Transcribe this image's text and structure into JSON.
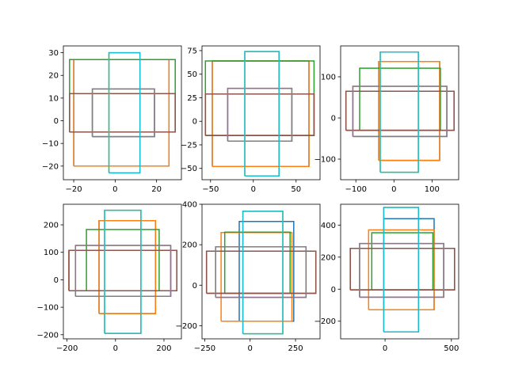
{
  "colors": [
    "#1f77b4",
    "#ff7f0e",
    "#2ca02c",
    "#d62728",
    "#9467bd",
    "#8c564b",
    "#e377c2",
    "#7f7f7f",
    "#bcbd22",
    "#17becf"
  ],
  "chart_data": [
    {
      "type": "line",
      "panel": "row1-col1",
      "xlim": [
        -25,
        32
      ],
      "ylim": [
        -26,
        33
      ],
      "xticks": [
        -20,
        0,
        20
      ],
      "xtick_labels": [
        "−20",
        "0",
        "20"
      ],
      "yticks": [
        -20,
        -10,
        0,
        10,
        20,
        30
      ],
      "ytick_labels": [
        "−20",
        "−10",
        "0",
        "10",
        "20",
        "30"
      ],
      "grid": false,
      "rectangles": [
        {
          "x0": -20,
          "x1": 26,
          "y0": -20,
          "y1": 27
        },
        {
          "x0": -20,
          "x1": 26,
          "y0": -20,
          "y1": 27
        },
        {
          "x0": -22,
          "x1": 29,
          "y0": -5,
          "y1": 27
        },
        {
          "x0": -22,
          "x1": 29,
          "y0": -5,
          "y1": 12
        },
        {
          "x0": -11,
          "x1": 19,
          "y0": -7,
          "y1": 12
        },
        {
          "x0": -22,
          "x1": 29,
          "y0": -5,
          "y1": 12
        },
        {
          "x0": -11,
          "x1": 19,
          "y0": -7,
          "y1": 14
        },
        {
          "x0": -11,
          "x1": 19,
          "y0": -7,
          "y1": 14
        },
        {
          "x0": -3,
          "x1": 12,
          "y0": -23,
          "y1": 30
        },
        {
          "x0": -3,
          "x1": 12,
          "y0": -23,
          "y1": 30
        }
      ]
    },
    {
      "type": "line",
      "panel": "row1-col2",
      "xlim": [
        -60,
        78
      ],
      "ylim": [
        -62,
        80
      ],
      "xticks": [
        -50,
        0,
        50
      ],
      "xtick_labels": [
        "−50",
        "0",
        "50"
      ],
      "yticks": [
        -50,
        -25,
        0,
        25,
        50,
        75
      ],
      "ytick_labels": [
        "−50",
        "−25",
        "0",
        "25",
        "50",
        "75"
      ],
      "grid": false,
      "rectangles": [
        {
          "x0": -48,
          "x1": 65,
          "y0": -48,
          "y1": 64
        },
        {
          "x0": -48,
          "x1": 65,
          "y0": -48,
          "y1": 64
        },
        {
          "x0": -56,
          "x1": 71,
          "y0": -15,
          "y1": 64
        },
        {
          "x0": -56,
          "x1": 71,
          "y0": -15,
          "y1": 29
        },
        {
          "x0": -30,
          "x1": 45,
          "y0": -21,
          "y1": 29
        },
        {
          "x0": -56,
          "x1": 71,
          "y0": -15,
          "y1": 29
        },
        {
          "x0": -30,
          "x1": 45,
          "y0": -21,
          "y1": 35
        },
        {
          "x0": -30,
          "x1": 45,
          "y0": -21,
          "y1": 35
        },
        {
          "x0": -10,
          "x1": 30,
          "y0": -58,
          "y1": 74
        },
        {
          "x0": -10,
          "x1": 30,
          "y0": -58,
          "y1": 74
        }
      ]
    },
    {
      "type": "line",
      "panel": "row1-col3",
      "xlim": [
        -140,
        170
      ],
      "ylim": [
        -150,
        175
      ],
      "xticks": [
        -100,
        0,
        100
      ],
      "xtick_labels": [
        "−100",
        "0",
        "100"
      ],
      "yticks": [
        -100,
        0,
        100
      ],
      "ytick_labels": [
        "−100",
        "0",
        "100"
      ],
      "grid": false,
      "rectangles": [
        {
          "x0": -40,
          "x1": 120,
          "y0": -103,
          "y1": 137
        },
        {
          "x0": -40,
          "x1": 120,
          "y0": -103,
          "y1": 137
        },
        {
          "x0": -90,
          "x1": 122,
          "y0": -30,
          "y1": 121
        },
        {
          "x0": -126,
          "x1": 158,
          "y0": -30,
          "y1": 65
        },
        {
          "x0": -108,
          "x1": 139,
          "y0": -45,
          "y1": 65
        },
        {
          "x0": -126,
          "x1": 158,
          "y0": -30,
          "y1": 65
        },
        {
          "x0": -108,
          "x1": 139,
          "y0": -45,
          "y1": 77
        },
        {
          "x0": -108,
          "x1": 139,
          "y0": -45,
          "y1": 77
        },
        {
          "x0": -36,
          "x1": 64,
          "y0": -132,
          "y1": 160
        },
        {
          "x0": -36,
          "x1": 64,
          "y0": -132,
          "y1": 160
        }
      ]
    },
    {
      "type": "line",
      "panel": "row2-col1",
      "xlim": [
        -215,
        272
      ],
      "ylim": [
        -215,
        275
      ],
      "xticks": [
        -200,
        0,
        200
      ],
      "xtick_labels": [
        "−200",
        "0",
        "200"
      ],
      "yticks": [
        -200,
        -100,
        0,
        100,
        200
      ],
      "ytick_labels": [
        "−200",
        "−100",
        "0",
        "100",
        "200"
      ],
      "grid": false,
      "rectangles": [
        {
          "x0": -68,
          "x1": 165,
          "y0": -123,
          "y1": 215
        },
        {
          "x0": -68,
          "x1": 165,
          "y0": -123,
          "y1": 215
        },
        {
          "x0": -120,
          "x1": 180,
          "y0": -40,
          "y1": 183
        },
        {
          "x0": -192,
          "x1": 253,
          "y0": -40,
          "y1": 107
        },
        {
          "x0": -165,
          "x1": 228,
          "y0": -60,
          "y1": 107
        },
        {
          "x0": -192,
          "x1": 253,
          "y0": -40,
          "y1": 107
        },
        {
          "x0": -165,
          "x1": 228,
          "y0": -60,
          "y1": 125
        },
        {
          "x0": -165,
          "x1": 228,
          "y0": -60,
          "y1": 125
        },
        {
          "x0": -45,
          "x1": 105,
          "y0": -195,
          "y1": 253
        },
        {
          "x0": -45,
          "x1": 105,
          "y0": -195,
          "y1": 253
        }
      ]
    },
    {
      "type": "line",
      "panel": "row2-col2",
      "xlim": [
        -265,
        385
      ],
      "ylim": [
        -265,
        400
      ],
      "xticks": [
        -250,
        0,
        250
      ],
      "xtick_labels": [
        "−250",
        "0",
        "250"
      ],
      "yticks": [
        -200,
        0,
        200,
        400
      ],
      "ytick_labels": [
        "−200",
        "0",
        "200",
        "400"
      ],
      "grid": false,
      "rectangles": [
        {
          "x0": -60,
          "x1": 240,
          "y0": -178,
          "y1": 315
        },
        {
          "x0": -160,
          "x1": 230,
          "y0": -178,
          "y1": 260
        },
        {
          "x0": -140,
          "x1": 220,
          "y0": -40,
          "y1": 262
        },
        {
          "x0": -240,
          "x1": 362,
          "y0": -40,
          "y1": 168
        },
        {
          "x0": -190,
          "x1": 308,
          "y0": -60,
          "y1": 168
        },
        {
          "x0": -240,
          "x1": 362,
          "y0": -40,
          "y1": 168
        },
        {
          "x0": -190,
          "x1": 308,
          "y0": -60,
          "y1": 190
        },
        {
          "x0": -190,
          "x1": 308,
          "y0": -60,
          "y1": 190
        },
        {
          "x0": -40,
          "x1": 180,
          "y0": -240,
          "y1": 365
        },
        {
          "x0": -40,
          "x1": 180,
          "y0": -240,
          "y1": 365
        }
      ]
    },
    {
      "type": "line",
      "panel": "row2-col3",
      "xlim": [
        -335,
        555
      ],
      "ylim": [
        -310,
        530
      ],
      "xticks": [
        0,
        500
      ],
      "xtick_labels": [
        "0",
        "500"
      ],
      "yticks": [
        -200,
        0,
        200,
        400
      ],
      "ytick_labels": [
        "−200",
        "0",
        "200",
        "400"
      ],
      "grid": false,
      "rectangles": [
        {
          "x0": -10,
          "x1": 370,
          "y0": -128,
          "y1": 440
        },
        {
          "x0": -124,
          "x1": 370,
          "y0": -128,
          "y1": 370
        },
        {
          "x0": -100,
          "x1": 360,
          "y0": -4,
          "y1": 352
        },
        {
          "x0": -262,
          "x1": 524,
          "y0": -4,
          "y1": 255
        },
        {
          "x0": -192,
          "x1": 442,
          "y0": -50,
          "y1": 255
        },
        {
          "x0": -262,
          "x1": 524,
          "y0": -4,
          "y1": 255
        },
        {
          "x0": -192,
          "x1": 442,
          "y0": -50,
          "y1": 285
        },
        {
          "x0": -192,
          "x1": 442,
          "y0": -50,
          "y1": 285
        },
        {
          "x0": -10,
          "x1": 252,
          "y0": -267,
          "y1": 510
        },
        {
          "x0": -10,
          "x1": 252,
          "y0": -267,
          "y1": 510
        }
      ]
    }
  ]
}
